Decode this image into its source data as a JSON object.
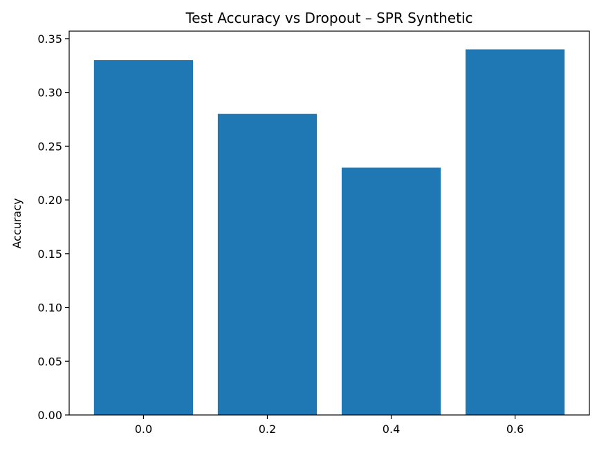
{
  "chart_data": {
    "type": "bar",
    "title": "Test Accuracy vs Dropout – SPR Synthetic",
    "xlabel": "",
    "ylabel": "Accuracy",
    "categories": [
      "0.0",
      "0.2",
      "0.4",
      "0.6"
    ],
    "values": [
      0.33,
      0.28,
      0.23,
      0.34
    ],
    "ylim": [
      0,
      0.357
    ],
    "yticks": [
      "0.00",
      "0.05",
      "0.10",
      "0.15",
      "0.20",
      "0.25",
      "0.30",
      "0.35"
    ],
    "bar_color": "#1f77b4",
    "grid": false,
    "legend": "none"
  }
}
